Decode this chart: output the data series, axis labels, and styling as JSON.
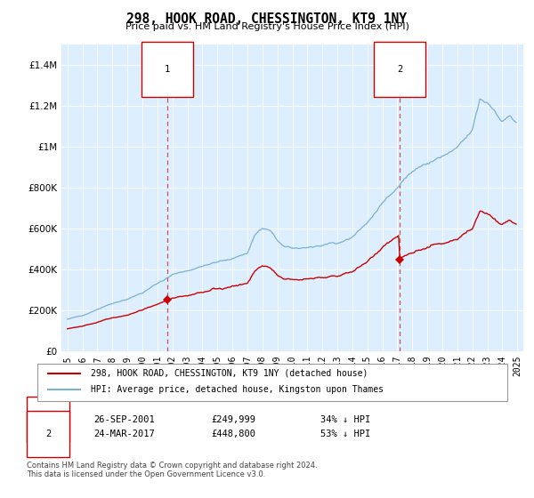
{
  "title": "298, HOOK ROAD, CHESSINGTON, KT9 1NY",
  "subtitle": "Price paid vs. HM Land Registry's House Price Index (HPI)",
  "legend_line1": "298, HOOK ROAD, CHESSINGTON, KT9 1NY (detached house)",
  "legend_line2": "HPI: Average price, detached house, Kingston upon Thames",
  "annotation1_date": "26-SEP-2001",
  "annotation1_price": 249999,
  "annotation1_text": "34% ↓ HPI",
  "annotation1_label": "1",
  "annotation2_date": "24-MAR-2017",
  "annotation2_price": 448800,
  "annotation2_text": "53% ↓ HPI",
  "annotation2_label": "2",
  "footnote1": "Contains HM Land Registry data © Crown copyright and database right 2024.",
  "footnote2": "This data is licensed under the Open Government Licence v3.0.",
  "red_color": "#cc0000",
  "blue_color": "#7ab0d4",
  "bg_color": "#ddeeff",
  "ylim_max": 1500000,
  "yticks": [
    0,
    200000,
    400000,
    600000,
    800000,
    1000000,
    1200000,
    1400000
  ],
  "sale1_year_float": 2001.667,
  "sale1_price": 249999,
  "sale2_year_float": 2017.167,
  "sale2_price": 448800
}
